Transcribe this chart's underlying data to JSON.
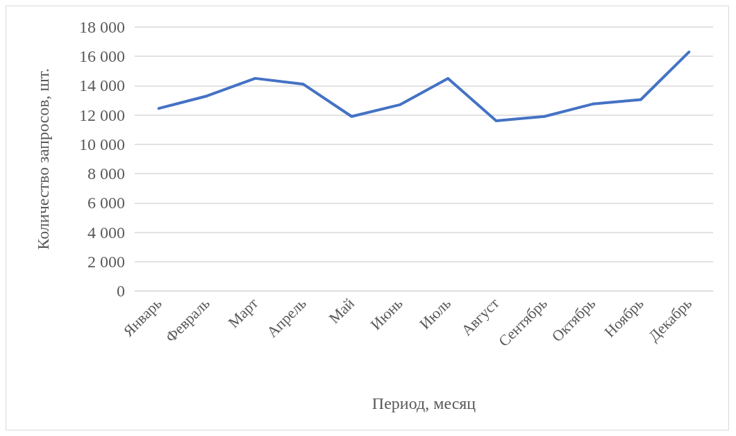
{
  "chart_data": {
    "type": "line",
    "xlabel": "Период, месяц",
    "ylabel": "Количество запросов, шт.",
    "categories": [
      "Январь",
      "Февраль",
      "Март",
      "Апрель",
      "Май",
      "Июнь",
      "Июль",
      "Август",
      "Сентябрь",
      "Октябрь",
      "Ноябрь",
      "Декабрь"
    ],
    "series": [
      {
        "color": "#4472c4",
        "values": [
          12450,
          13300,
          14500,
          14100,
          11900,
          12700,
          14500,
          11600,
          11900,
          12750,
          13050,
          16300
        ]
      }
    ],
    "ylim": [
      0,
      18000
    ],
    "yticks": [
      {
        "value": 0,
        "label": "0"
      },
      {
        "value": 2000,
        "label": "2 000"
      },
      {
        "value": 4000,
        "label": "4 000"
      },
      {
        "value": 6000,
        "label": "6 000"
      },
      {
        "value": 8000,
        "label": "8 000"
      },
      {
        "value": 10000,
        "label": "10 000"
      },
      {
        "value": 12000,
        "label": "12 000"
      },
      {
        "value": 14000,
        "label": "14 000"
      },
      {
        "value": 16000,
        "label": "16 000"
      },
      {
        "value": 18000,
        "label": "18 000"
      }
    ],
    "grid": "y",
    "marker": "none",
    "line_style": "solid"
  }
}
